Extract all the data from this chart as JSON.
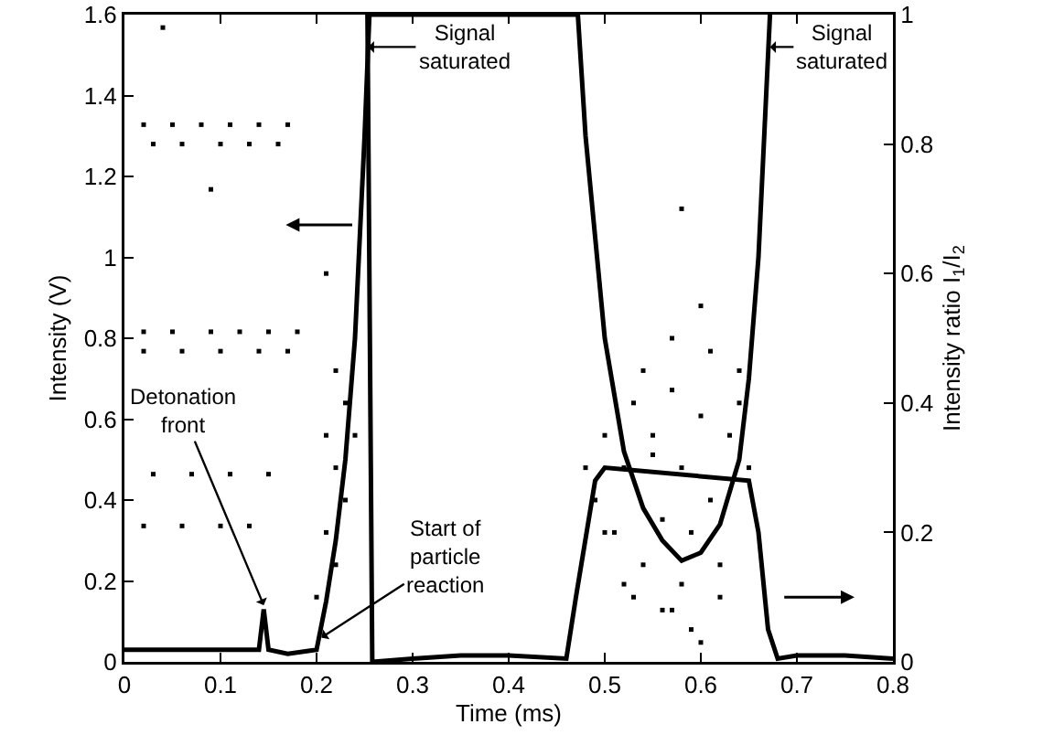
{
  "chart_data": {
    "type": "line",
    "xlabel": "Time (ms)",
    "ylabel": "Intensity (V)",
    "y2label": "Intensity ratio I$_{1}$/I$_{2}$",
    "xlim": [
      0,
      0.8
    ],
    "xticks": [
      0,
      0.1,
      0.2,
      0.3,
      0.4,
      0.5,
      0.6,
      0.7,
      0.8
    ],
    "ylim": [
      0,
      1.6
    ],
    "yticks": [
      0,
      0.2,
      0.4,
      0.6,
      0.8,
      1,
      1.2,
      1.4,
      1.6
    ],
    "y2lim": [
      0,
      1
    ],
    "y2ticks": [
      0,
      0.2,
      0.4,
      0.6,
      0.8,
      1
    ],
    "grid": false,
    "line_style": "solid",
    "series": [
      {
        "color": "#000000",
        "x": [
          0,
          0.03,
          0.06,
          0.09,
          0.12,
          0.14,
          0.145,
          0.15,
          0.17,
          0.2,
          0.21,
          0.22,
          0.23,
          0.24,
          0.25,
          0.255,
          0.472,
          0.48,
          0.5,
          0.52,
          0.54,
          0.56,
          0.58,
          0.6,
          0.62,
          0.64,
          0.65,
          0.66,
          0.672
        ],
        "values": [
          0.03,
          0.03,
          0.03,
          0.03,
          0.03,
          0.03,
          0.13,
          0.03,
          0.02,
          0.03,
          0.15,
          0.3,
          0.5,
          0.8,
          1.3,
          1.6,
          1.6,
          1.3,
          0.8,
          0.52,
          0.38,
          0.3,
          0.25,
          0.27,
          0.34,
          0.5,
          0.7,
          1.0,
          1.6
        ]
      },
      {
        "axis": "y2",
        "color": "#000000",
        "x": [
          0.253,
          0.258,
          0.3,
          0.35,
          0.4,
          0.46,
          0.47,
          0.49,
          0.5,
          0.65,
          0.66,
          0.67,
          0.68,
          0.7,
          0.75,
          0.8
        ],
        "values": [
          1,
          0,
          0.005,
          0.01,
          0.01,
          0.005,
          0.1,
          0.28,
          0.3,
          0.28,
          0.2,
          0.05,
          0.005,
          0.01,
          0.01,
          0.005
        ]
      },
      {
        "type": "scatter",
        "axis": "y2",
        "color": "#000000",
        "x": [
          0.02,
          0.05,
          0.08,
          0.11,
          0.14,
          0.17,
          0.03,
          0.06,
          0.1,
          0.13,
          0.16,
          0.02,
          0.05,
          0.09,
          0.12,
          0.15,
          0.18,
          0.02,
          0.06,
          0.1,
          0.14,
          0.17,
          0.03,
          0.07,
          0.11,
          0.15,
          0.02,
          0.06,
          0.1,
          0.13,
          0.04,
          0.09,
          0.2,
          0.21,
          0.21,
          0.22,
          0.22,
          0.23,
          0.23,
          0.24,
          0.21,
          0.22,
          0.48,
          0.49,
          0.5,
          0.51,
          0.52,
          0.53,
          0.54,
          0.55,
          0.56,
          0.57,
          0.58,
          0.58,
          0.59,
          0.6,
          0.61,
          0.62,
          0.63,
          0.64,
          0.65,
          0.5,
          0.52,
          0.54,
          0.56,
          0.57,
          0.59,
          0.6,
          0.62,
          0.64,
          0.55,
          0.57,
          0.58,
          0.6,
          0.61,
          0.53
        ],
        "values": [
          0.83,
          0.83,
          0.83,
          0.83,
          0.83,
          0.83,
          0.8,
          0.8,
          0.8,
          0.8,
          0.8,
          0.51,
          0.51,
          0.51,
          0.51,
          0.51,
          0.51,
          0.48,
          0.48,
          0.48,
          0.48,
          0.48,
          0.29,
          0.29,
          0.29,
          0.29,
          0.21,
          0.21,
          0.21,
          0.21,
          0.98,
          0.73,
          0.1,
          0.2,
          0.35,
          0.15,
          0.3,
          0.25,
          0.4,
          0.35,
          0.6,
          0.45,
          0.3,
          0.25,
          0.35,
          0.2,
          0.3,
          0.4,
          0.15,
          0.32,
          0.22,
          0.42,
          0.12,
          0.3,
          0.2,
          0.38,
          0.25,
          0.1,
          0.35,
          0.4,
          0.3,
          0.2,
          0.12,
          0.45,
          0.08,
          0.5,
          0.05,
          0.55,
          0.15,
          0.45,
          0.35,
          0.08,
          0.7,
          0.03,
          0.48,
          0.1
        ]
      }
    ],
    "annotations": [
      {
        "text": "Signal\nsaturated",
        "x": 0.2537,
        "y": 1.52
      },
      {
        "text": "Signal\nsaturated",
        "x": 0.672,
        "y": 1.52
      },
      {
        "text": "Detonation\nfront",
        "x": 0.145,
        "y": 0.14
      },
      {
        "text": "Start of\nparticle\nreaction",
        "x": 0.205,
        "y": 0.06
      }
    ]
  }
}
